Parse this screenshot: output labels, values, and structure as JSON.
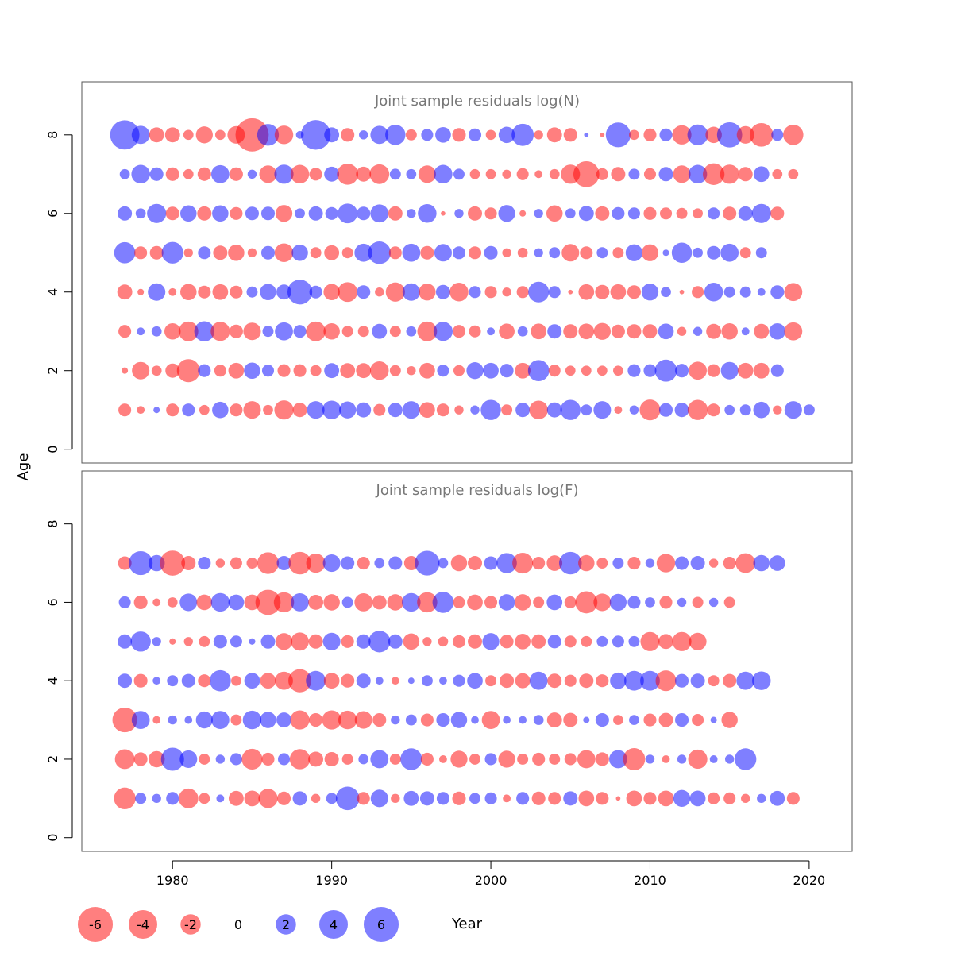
{
  "figure": {
    "ylabel": "Age",
    "xlabel": "Year",
    "x_ticks": [
      "1980",
      "1990",
      "2000",
      "2010",
      "2020"
    ],
    "y_ticks": [
      "0",
      "2",
      "4",
      "6",
      "8"
    ]
  },
  "colors": {
    "negative": "#ff0000",
    "positive": "#0000ff",
    "frame": "#555555",
    "title": "#777777"
  },
  "legend": {
    "entries": [
      {
        "label": "-6",
        "value": -6
      },
      {
        "label": "-4",
        "value": -4
      },
      {
        "label": "-2",
        "value": -2
      },
      {
        "label": "0",
        "value": 0
      },
      {
        "label": "2",
        "value": 2
      },
      {
        "label": "4",
        "value": 4
      },
      {
        "label": "6",
        "value": 6
      }
    ]
  },
  "chart_data": [
    {
      "type": "scatter",
      "encoding": "bubble",
      "title": "Joint sample residuals log(N)",
      "xlabel": "Year",
      "ylabel": "Age",
      "xlim": [
        1974.3,
        2022.7
      ],
      "ylim": [
        -0.35,
        9.35
      ],
      "years_start": 1977,
      "ages": [
        1,
        2,
        3,
        4,
        5,
        6,
        7,
        8
      ],
      "residuals_by_age": {
        "1": [
          -0.8,
          -0.3,
          0.2,
          -0.8,
          0.8,
          -0.5,
          1.3,
          -0.8,
          -1.5,
          -0.5,
          -1.8,
          -1.0,
          1.5,
          1.7,
          1.4,
          1.1,
          -0.7,
          1.0,
          1.5,
          -1.2,
          -0.8,
          -0.4,
          0.4,
          2.0,
          -0.6,
          1.0,
          -1.7,
          1.1,
          2.0,
          0.6,
          1.5,
          -0.3,
          0.4,
          -2.1,
          0.9,
          1.0,
          -2.0,
          -0.8,
          0.5,
          0.6,
          1.3,
          -0.4,
          1.5,
          0.6
        ],
        "2": [
          -0.2,
          -1.5,
          -0.5,
          -1.0,
          -2.6,
          0.8,
          -0.7,
          -1.2,
          1.3,
          0.7,
          -0.8,
          -0.8,
          -0.6,
          1.1,
          -1.1,
          -1.1,
          -1.7,
          -0.6,
          -0.4,
          -1.2,
          0.7,
          -0.6,
          1.4,
          1.2,
          0.9,
          -1.2,
          2.2,
          -0.7,
          -0.5,
          -0.5,
          -0.5,
          -0.5,
          0.8,
          0.8,
          2.4,
          0.9,
          -1.6,
          -0.8,
          1.5,
          -1.2,
          -1.2,
          0.8
        ],
        "3": [
          -0.8,
          0.3,
          0.5,
          -1.3,
          -1.9,
          2.0,
          -1.8,
          -0.9,
          -1.5,
          0.6,
          1.6,
          0.8,
          -1.9,
          -1.3,
          -0.6,
          -0.6,
          1.1,
          -0.6,
          0.5,
          -1.9,
          1.8,
          -0.8,
          -0.7,
          0.3,
          -1.2,
          0.5,
          -1.2,
          1.0,
          -1.0,
          -1.2,
          -1.4,
          -0.9,
          -1.0,
          -1.0,
          1.2,
          -0.4,
          0.4,
          -1.1,
          -1.3,
          0.3,
          -1.1,
          1.3,
          -1.6
        ],
        "4": [
          -1.1,
          -0.2,
          1.5,
          -0.3,
          -1.3,
          -0.8,
          -1.2,
          -0.8,
          0.6,
          1.3,
          1.1,
          3.0,
          0.8,
          -1.3,
          -1.9,
          0.9,
          -0.4,
          -1.8,
          1.5,
          -1.4,
          1.0,
          -1.7,
          0.7,
          -0.7,
          -0.4,
          -0.7,
          2.1,
          0.7,
          -0.1,
          -1.2,
          -1.0,
          -1.2,
          -0.9,
          1.4,
          0.5,
          -0.1,
          -0.7,
          1.7,
          0.6,
          0.6,
          0.3,
          0.9,
          -1.6
        ],
        "5": [
          2.2,
          -0.8,
          -0.9,
          2.3,
          -0.4,
          0.8,
          -1.0,
          -1.3,
          -0.4,
          0.9,
          -1.7,
          1.3,
          -0.6,
          -1.1,
          -0.6,
          1.6,
          2.5,
          -0.8,
          1.6,
          -0.9,
          1.5,
          0.8,
          -0.8,
          0.9,
          -0.4,
          -0.5,
          0.4,
          0.6,
          -1.5,
          -0.8,
          0.6,
          -0.6,
          1.4,
          -1.4,
          0.2,
          2.0,
          0.5,
          0.9,
          1.6,
          -0.6,
          0.6
        ],
        "6": [
          1.0,
          0.5,
          1.8,
          -0.9,
          1.3,
          -1.0,
          1.3,
          -0.8,
          0.9,
          0.9,
          -1.4,
          0.5,
          1.0,
          0.8,
          1.9,
          0.9,
          1.6,
          -1.0,
          0.4,
          1.7,
          -0.1,
          0.4,
          -1.0,
          -0.7,
          1.4,
          -0.2,
          0.4,
          -1.3,
          0.5,
          1.1,
          -1.0,
          0.8,
          0.7,
          -0.8,
          -0.7,
          -0.6,
          -0.5,
          0.7,
          -0.9,
          1.0,
          1.8,
          -0.9
        ],
        "7": [
          0.5,
          1.7,
          0.9,
          -0.9,
          -0.5,
          -0.9,
          1.6,
          -0.9,
          0.4,
          -1.5,
          1.8,
          -1.7,
          -0.8,
          1.1,
          -2.2,
          -1.1,
          -1.9,
          0.6,
          0.5,
          -1.5,
          1.7,
          0.6,
          -0.5,
          -0.5,
          -0.4,
          -0.7,
          -0.3,
          -0.5,
          -1.8,
          -3.3,
          -0.7,
          -1.0,
          0.6,
          -0.7,
          1.0,
          -1.5,
          1.7,
          -2.3,
          -1.8,
          -1.0,
          1.2,
          -0.5,
          -0.5
        ],
        "8": [
          4.2,
          1.6,
          -1.1,
          -1.1,
          -0.5,
          -1.4,
          -0.5,
          -1.5,
          -5.4,
          2.3,
          -1.7,
          0.3,
          4.3,
          1.1,
          -0.9,
          0.4,
          1.6,
          2.0,
          -0.6,
          0.7,
          1.2,
          -0.9,
          0.8,
          -0.5,
          1.3,
          2.4,
          -0.4,
          -1.1,
          -0.9,
          0.1,
          -0.1,
          3.0,
          -0.5,
          -0.8,
          0.8,
          -1.8,
          2.1,
          -1.3,
          3.1,
          -1.5,
          -2.7,
          0.7,
          -2.0
        ]
      }
    },
    {
      "type": "scatter",
      "encoding": "bubble",
      "title": "Joint sample residuals log(F)",
      "xlabel": "Year",
      "ylabel": "Age",
      "xlim": [
        1974.3,
        2022.7
      ],
      "ylim": [
        -0.35,
        9.35
      ],
      "years_start": 1977,
      "ages": [
        1,
        2,
        3,
        4,
        5,
        6,
        7
      ],
      "residuals_by_age": {
        "1": [
          -2.3,
          0.6,
          0.4,
          0.8,
          -1.9,
          -0.6,
          0.3,
          -1.1,
          -1.2,
          -1.8,
          -0.9,
          1.0,
          -0.4,
          0.6,
          2.7,
          -0.8,
          1.5,
          -0.4,
          1.1,
          1.0,
          0.8,
          -0.9,
          0.6,
          0.7,
          -0.3,
          0.8,
          -0.9,
          -0.8,
          1.0,
          -1.2,
          -0.8,
          -0.1,
          -1.2,
          -0.8,
          -1.2,
          1.4,
          1.2,
          -0.7,
          -0.7,
          -0.4,
          0.4,
          1.1,
          -0.8
        ],
        "2": [
          -1.9,
          -0.9,
          -1.3,
          2.6,
          1.5,
          -0.6,
          0.4,
          0.7,
          -2.1,
          -0.8,
          0.7,
          -2.0,
          -1.1,
          -1.0,
          -0.6,
          0.5,
          1.6,
          -0.6,
          2.3,
          -0.8,
          -0.3,
          -1.4,
          -0.6,
          0.7,
          -1.4,
          -0.6,
          -0.8,
          -0.6,
          -0.7,
          -1.6,
          -0.9,
          1.6,
          -2.4,
          0.4,
          -0.3,
          0.4,
          -1.8,
          0.3,
          0.4,
          2.3
        ],
        "3": [
          -3.0,
          1.6,
          -0.3,
          0.4,
          0.3,
          1.4,
          1.6,
          -0.6,
          1.7,
          1.3,
          1.1,
          -1.8,
          -0.9,
          -1.8,
          -1.7,
          -1.5,
          -0.9,
          0.4,
          0.6,
          -0.8,
          0.9,
          1.3,
          0.3,
          -1.6,
          0.3,
          0.3,
          0.5,
          -1.1,
          -1.0,
          0.2,
          0.9,
          -0.5,
          0.5,
          -0.8,
          -1.0,
          0.9,
          -0.7,
          0.2,
          -1.3
        ],
        "4": [
          1.0,
          -0.9,
          0.3,
          0.6,
          0.9,
          -0.8,
          2.2,
          -0.5,
          1.2,
          -1.2,
          -1.6,
          -2.6,
          1.9,
          -1.2,
          -0.9,
          1.0,
          0.3,
          -0.3,
          0.2,
          0.6,
          0.3,
          0.7,
          1.2,
          -0.6,
          -1.0,
          -1.1,
          1.6,
          -1.0,
          -0.7,
          -1.0,
          -0.8,
          1.3,
          1.9,
          1.9,
          -2.1,
          0.9,
          1.0,
          -0.6,
          -0.9,
          1.6,
          1.7
        ],
        "5": [
          1.0,
          2.0,
          0.4,
          -0.2,
          -0.4,
          -0.6,
          0.9,
          0.7,
          0.2,
          1.0,
          -1.4,
          -1.6,
          -1.0,
          1.5,
          -0.8,
          1.0,
          2.3,
          1.0,
          -1.3,
          -0.4,
          -0.5,
          -0.8,
          -1.0,
          1.4,
          -0.9,
          -1.2,
          -1.0,
          0.9,
          -0.7,
          -0.6,
          0.6,
          0.7,
          0.6,
          -1.8,
          -1.1,
          -1.8,
          -1.5
        ],
        "6": [
          0.7,
          -0.9,
          -0.3,
          -0.5,
          1.5,
          -1.2,
          1.7,
          1.2,
          -1.2,
          -3.1,
          -2.0,
          1.6,
          -1.1,
          -1.3,
          0.6,
          -1.6,
          -1.0,
          -1.3,
          1.7,
          -2.0,
          2.2,
          -0.7,
          -1.2,
          -0.8,
          1.3,
          -1.3,
          -0.6,
          1.2,
          -0.7,
          -2.4,
          -1.5,
          1.4,
          0.8,
          0.5,
          -0.8,
          0.4,
          -0.6,
          0.4,
          -0.6
        ],
        "7": [
          -0.9,
          2.8,
          1.3,
          -3.1,
          -1.0,
          0.8,
          -0.4,
          -0.7,
          -0.6,
          -2.3,
          1.0,
          -2.5,
          -1.8,
          1.5,
          0.9,
          -0.8,
          0.5,
          0.9,
          -1.0,
          3.0,
          0.5,
          -1.3,
          -1.0,
          0.9,
          2.0,
          -2.1,
          -0.8,
          -1.2,
          2.5,
          -1.3,
          -0.6,
          0.6,
          -0.8,
          0.4,
          -1.7,
          0.9,
          1.0,
          -0.4,
          -0.8,
          -1.9,
          1.3,
          1.2
        ]
      }
    }
  ]
}
